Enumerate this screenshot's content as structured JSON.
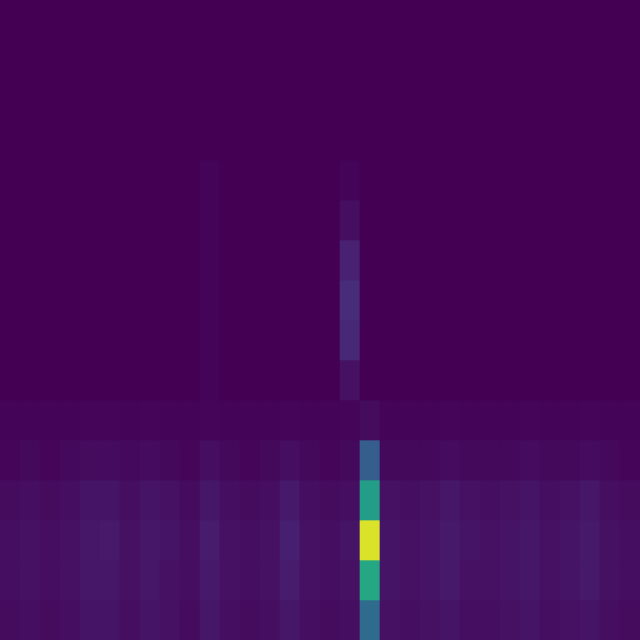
{
  "chart_data": {
    "type": "heatmap",
    "tick_labels": false,
    "grid": false,
    "xlim": [
      0,
      32
    ],
    "ylim": [
      0,
      16
    ],
    "color_range": [
      0,
      1
    ],
    "cells": [
      [
        0,
        0,
        0,
        0,
        0,
        0,
        0,
        0,
        0,
        0,
        0,
        0,
        0,
        0,
        0,
        0,
        0,
        0,
        0,
        0,
        0,
        0,
        0,
        0,
        0,
        0,
        0,
        0,
        0,
        0,
        0,
        0
      ],
      [
        0,
        0,
        0,
        0,
        0,
        0,
        0,
        0,
        0,
        0,
        0,
        0,
        0,
        0,
        0,
        0,
        0,
        0,
        0,
        0,
        0,
        0,
        0,
        0,
        0,
        0,
        0,
        0,
        0,
        0,
        0,
        0
      ],
      [
        0,
        0,
        0,
        0,
        0,
        0,
        0,
        0,
        0,
        0,
        0,
        0,
        0,
        0,
        0,
        0,
        0,
        0,
        0,
        0,
        0,
        0,
        0,
        0,
        0,
        0,
        0,
        0,
        0,
        0,
        0,
        0
      ],
      [
        0,
        0,
        0,
        0,
        0,
        0,
        0,
        0,
        0,
        0,
        0,
        0,
        0,
        0,
        0,
        0,
        0,
        0,
        0,
        0,
        0,
        0,
        0,
        0,
        0,
        0,
        0,
        0,
        0,
        0,
        0,
        0
      ],
      [
        0,
        0,
        0,
        0,
        0,
        0,
        0,
        0,
        0,
        0,
        0.01,
        0,
        0,
        0,
        0,
        0,
        0,
        0.01,
        0,
        0,
        0,
        0,
        0,
        0,
        0,
        0,
        0,
        0,
        0,
        0,
        0,
        0
      ],
      [
        0,
        0,
        0,
        0,
        0,
        0,
        0,
        0,
        0,
        0,
        0.01,
        0,
        0,
        0,
        0,
        0,
        0,
        0.05,
        0,
        0,
        0,
        0,
        0,
        0,
        0,
        0,
        0,
        0,
        0,
        0,
        0,
        0
      ],
      [
        0,
        0,
        0,
        0,
        0,
        0,
        0,
        0,
        0,
        0,
        0.01,
        0,
        0,
        0,
        0,
        0,
        0,
        0.12,
        0,
        0,
        0,
        0,
        0,
        0,
        0,
        0,
        0,
        0,
        0,
        0,
        0,
        0
      ],
      [
        0,
        0,
        0,
        0,
        0,
        0,
        0,
        0,
        0,
        0,
        0.01,
        0,
        0,
        0,
        0,
        0,
        0,
        0.15,
        0,
        0,
        0,
        0,
        0,
        0,
        0,
        0,
        0,
        0,
        0,
        0,
        0,
        0
      ],
      [
        0,
        0,
        0,
        0,
        0,
        0,
        0,
        0,
        0,
        0,
        0.01,
        0,
        0,
        0,
        0,
        0,
        0,
        0.14,
        0,
        0,
        0,
        0,
        0,
        0,
        0,
        0,
        0,
        0,
        0,
        0,
        0,
        0
      ],
      [
        0,
        0,
        0,
        0,
        0,
        0,
        0,
        0,
        0,
        0,
        0.01,
        0,
        0,
        0,
        0,
        0,
        0,
        0.06,
        0,
        0,
        0,
        0,
        0,
        0,
        0,
        0,
        0,
        0,
        0,
        0,
        0,
        0
      ],
      [
        0.01,
        0.01,
        0.01,
        0.01,
        0.02,
        0.02,
        0.01,
        0.02,
        0.01,
        0.01,
        0.02,
        0.01,
        0.01,
        0.01,
        0.02,
        0.01,
        0.01,
        0.02,
        0.04,
        0.01,
        0.01,
        0.01,
        0.02,
        0.01,
        0.01,
        0.01,
        0.02,
        0.01,
        0.01,
        0.02,
        0.01,
        0.01
      ],
      [
        0.02,
        0.03,
        0.02,
        0.03,
        0.04,
        0.04,
        0.03,
        0.04,
        0.03,
        0.02,
        0.05,
        0.03,
        0.02,
        0.03,
        0.05,
        0.03,
        0.02,
        0.03,
        0.3,
        0.03,
        0.03,
        0.03,
        0.04,
        0.03,
        0.03,
        0.03,
        0.04,
        0.03,
        0.03,
        0.04,
        0.03,
        0.02
      ],
      [
        0.04,
        0.05,
        0.04,
        0.05,
        0.07,
        0.07,
        0.05,
        0.07,
        0.06,
        0.04,
        0.08,
        0.05,
        0.04,
        0.05,
        0.09,
        0.05,
        0.04,
        0.05,
        0.55,
        0.06,
        0.05,
        0.06,
        0.08,
        0.06,
        0.05,
        0.06,
        0.07,
        0.05,
        0.06,
        0.08,
        0.05,
        0.04
      ],
      [
        0.05,
        0.06,
        0.05,
        0.06,
        0.08,
        0.09,
        0.06,
        0.08,
        0.07,
        0.05,
        0.1,
        0.06,
        0.05,
        0.06,
        0.11,
        0.06,
        0.05,
        0.07,
        0.95,
        0.07,
        0.06,
        0.07,
        0.09,
        0.07,
        0.06,
        0.07,
        0.08,
        0.06,
        0.07,
        0.09,
        0.06,
        0.05
      ],
      [
        0.05,
        0.06,
        0.05,
        0.06,
        0.08,
        0.08,
        0.06,
        0.08,
        0.06,
        0.05,
        0.09,
        0.06,
        0.05,
        0.06,
        0.1,
        0.06,
        0.05,
        0.06,
        0.6,
        0.07,
        0.06,
        0.07,
        0.09,
        0.06,
        0.06,
        0.07,
        0.08,
        0.06,
        0.07,
        0.09,
        0.06,
        0.05
      ],
      [
        0.04,
        0.05,
        0.04,
        0.05,
        0.07,
        0.07,
        0.05,
        0.07,
        0.06,
        0.04,
        0.08,
        0.05,
        0.04,
        0.05,
        0.08,
        0.05,
        0.04,
        0.05,
        0.35,
        0.06,
        0.05,
        0.06,
        0.07,
        0.05,
        0.05,
        0.06,
        0.07,
        0.05,
        0.06,
        0.07,
        0.05,
        0.04
      ]
    ]
  }
}
